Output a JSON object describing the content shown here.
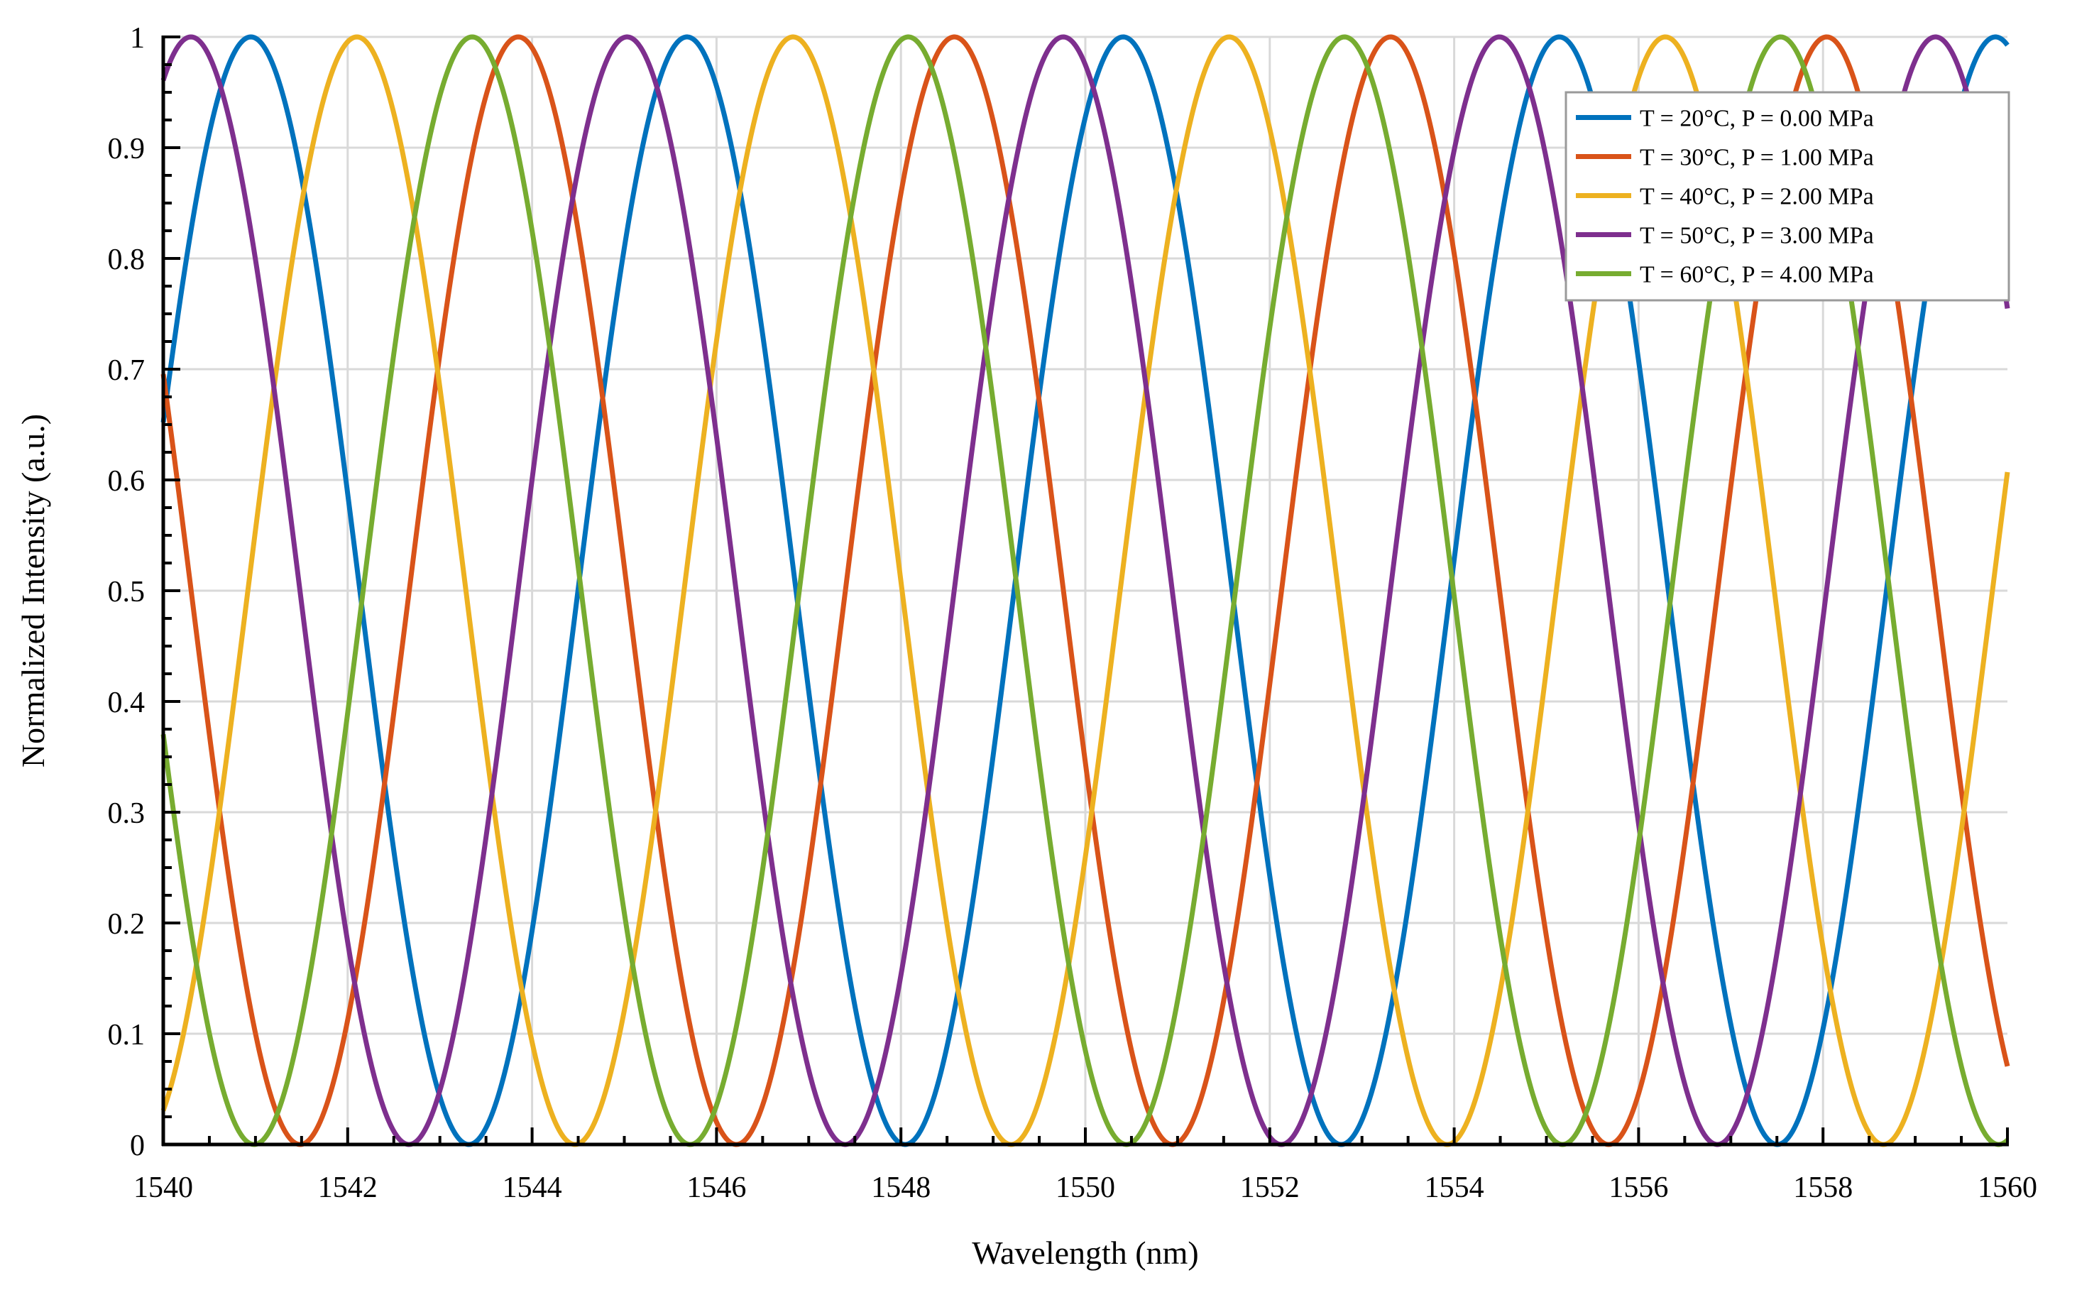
{
  "chart_data": {
    "type": "line",
    "title": "",
    "xlabel": "Wavelength (nm)",
    "ylabel": "Normalized Intensity (a.u.)",
    "xlim": [
      1540,
      1560
    ],
    "ylim": [
      0,
      1
    ],
    "x_ticks": [
      1540,
      1542,
      1544,
      1546,
      1548,
      1550,
      1552,
      1554,
      1556,
      1558,
      1560
    ],
    "x_tick_labels": [
      "1540",
      "1542",
      "1544",
      "1546",
      "1548",
      "1550",
      "1552",
      "1554",
      "1556",
      "1558",
      "1560"
    ],
    "y_ticks": [
      0,
      0.1,
      0.2,
      0.3,
      0.4,
      0.5,
      0.6,
      0.7,
      0.8,
      0.9,
      1
    ],
    "y_tick_labels": [
      "0",
      "0.1",
      "0.2",
      "0.3",
      "0.4",
      "0.5",
      "0.6",
      "0.7",
      "0.8",
      "0.9",
      "1"
    ],
    "grid": true,
    "legend_position": "top-right",
    "series_model": "intensity = cos^2(pi * (wavelength - peak_nm) / period_nm)",
    "series": [
      {
        "name": "T = 20°C, P = 0.00 MPa",
        "color": "#0072BD",
        "peak_nm": 1540.95,
        "period_nm": 4.73
      },
      {
        "name": "T = 30°C, P = 1.00 MPa",
        "color": "#D95319",
        "peak_nm": 1543.85,
        "period_nm": 4.73
      },
      {
        "name": "T = 40°C, P = 2.00 MPa",
        "color": "#EDB120",
        "peak_nm": 1542.1,
        "period_nm": 4.73
      },
      {
        "name": "T = 50°C, P = 3.00 MPa",
        "color": "#7E2F8E",
        "peak_nm": 1540.3,
        "period_nm": 4.73
      },
      {
        "name": "T = 60°C, P = 4.00 MPa",
        "color": "#77AC30",
        "peak_nm": 1543.35,
        "period_nm": 4.73
      }
    ]
  }
}
